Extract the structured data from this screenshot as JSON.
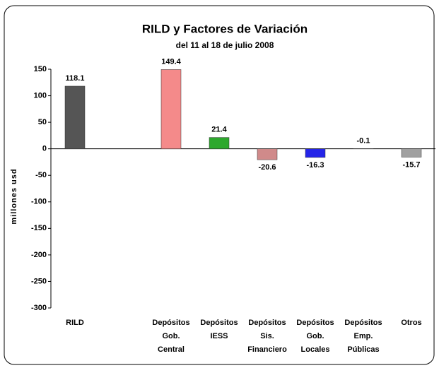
{
  "chart_data": {
    "type": "bar",
    "title": "RILD y Factores de Variación",
    "subtitle": "del 11 al 18 de julio 2008",
    "y_label": "millones usd",
    "categories": [
      [
        "RILD"
      ],
      null,
      [
        "Depósitos",
        "Gob.",
        "Central"
      ],
      [
        "Depósitos",
        "IESS"
      ],
      [
        "Depósitos",
        "Sis.",
        "Financiero"
      ],
      [
        "Depósitos",
        "Gob.",
        "Locales"
      ],
      [
        "Depósitos",
        "Emp.",
        "Públicas"
      ],
      [
        "Otros"
      ]
    ],
    "values": [
      118.1,
      null,
      149.4,
      21.4,
      -20.6,
      -16.3,
      -0.1,
      -15.7
    ],
    "colors": [
      "#555555",
      null,
      "#f48a8a",
      "#2ea82e",
      "#d08a8a",
      "#2424e8",
      "#888888",
      "#a0a0a0"
    ],
    "ylim": [
      -300,
      150
    ],
    "yticks": [
      -300,
      -250,
      -200,
      -150,
      -100,
      -50,
      0,
      50,
      100,
      150
    ],
    "grid": false
  }
}
